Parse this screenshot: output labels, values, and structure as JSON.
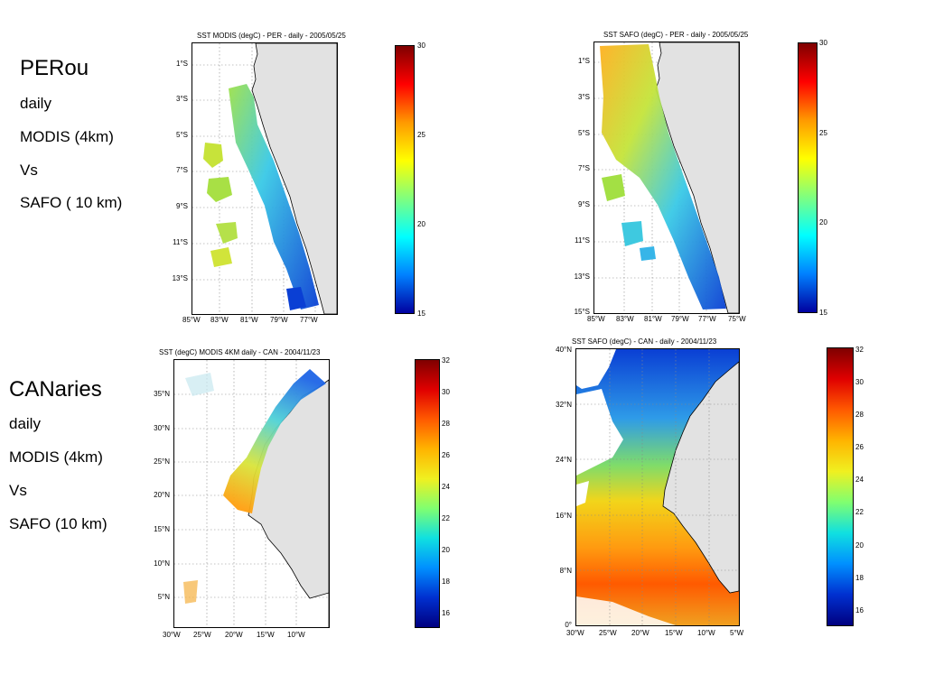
{
  "peru_labels": {
    "region": "PERou",
    "freq": "daily",
    "sensor1": "MODIS (4km)",
    "vs": "Vs",
    "sensor2": "SAFO ( 10 km)"
  },
  "canary_labels": {
    "region": "CANaries",
    "freq": "daily",
    "sensor1": "MODIS (4km)",
    "vs": "Vs",
    "sensor2": "SAFO (10 km)"
  },
  "maps": {
    "peru_modis": {
      "title": "SST MODIS  (degC) - PER - daily - 2005/05/25",
      "lat_ticks": [
        "1°S",
        "3°S",
        "5°S",
        "7°S",
        "9°S",
        "11°S",
        "13°S"
      ],
      "lon_ticks": [
        "85°W",
        "83°W",
        "81°W",
        "79°W",
        "77°W"
      ]
    },
    "peru_safo": {
      "title": "SST SAFO  (degC) - PER - daily - 2005/05/25",
      "lat_ticks": [
        "1°S",
        "3°S",
        "5°S",
        "7°S",
        "9°S",
        "11°S",
        "13°S",
        "15°S"
      ],
      "lon_ticks": [
        "85°W",
        "83°W",
        "81°W",
        "79°W",
        "77°W",
        "75°W"
      ]
    },
    "canary_modis": {
      "title": "SST (degC) MODIS 4KM  daily - CAN - 2004/11/23",
      "lat_ticks": [
        "35°N",
        "30°N",
        "25°N",
        "20°N",
        "15°N",
        "10°N",
        "5°N"
      ],
      "lon_ticks": [
        "30°W",
        "25°W",
        "20°W",
        "15°W",
        "10°W"
      ]
    },
    "canary_safo": {
      "title": "SST SAFO  (degC) - CAN - daily - 2004/11/23",
      "lat_ticks": [
        "40°N",
        "32°N",
        "24°N",
        "16°N",
        "8°N",
        "0°"
      ],
      "lon_ticks": [
        "30°W",
        "25°W",
        "20°W",
        "15°W",
        "10°W",
        "5°W"
      ]
    }
  },
  "colorbars": {
    "peru_modis": {
      "min": 15,
      "max": 30,
      "ticks": [
        "30",
        "25",
        "20",
        "15"
      ]
    },
    "peru_safo": {
      "min": 15,
      "max": 30,
      "ticks": [
        "30",
        "25",
        "20",
        "15"
      ]
    },
    "canary_modis": {
      "min": 15,
      "max": 32,
      "ticks": [
        "32",
        "30",
        "28",
        "26",
        "24",
        "22",
        "20",
        "18",
        "16"
      ]
    },
    "canary_safo": {
      "min": 15,
      "max": 32,
      "ticks": [
        "32",
        "30",
        "28",
        "26",
        "24",
        "22",
        "20",
        "18",
        "16"
      ]
    }
  },
  "colors": {
    "land": "#e2e2e2",
    "coast": "#000000",
    "grid": "#888888"
  }
}
